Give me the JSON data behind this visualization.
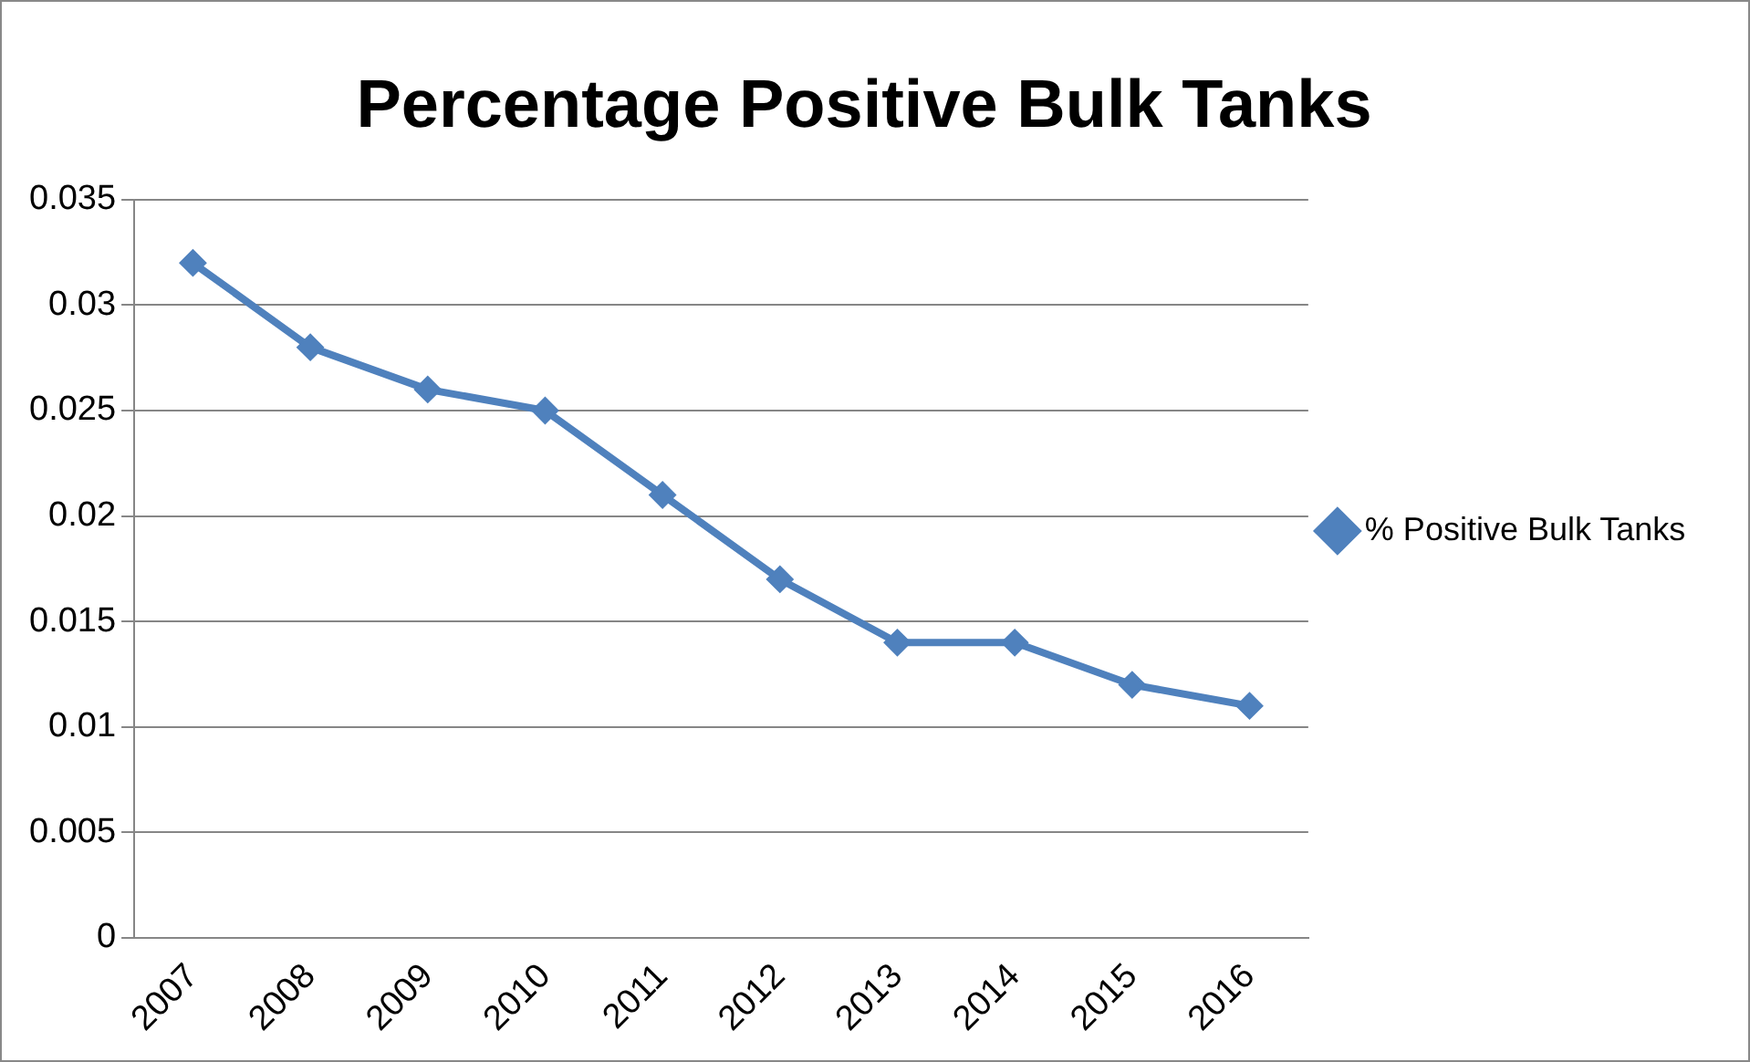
{
  "chart_data": {
    "type": "line",
    "title": "Percentage Positive Bulk Tanks",
    "categories": [
      "2007",
      "2008",
      "2009",
      "2010",
      "2011",
      "2012",
      "2013",
      "2014",
      "2015",
      "2016"
    ],
    "series": [
      {
        "name": "% Positive Bulk Tanks",
        "color": "#4f81bd",
        "values": [
          0.032,
          0.028,
          0.026,
          0.025,
          0.021,
          0.017,
          0.014,
          0.014,
          0.012,
          0.011
        ]
      }
    ],
    "ylim": [
      0,
      0.035
    ],
    "yticks": [
      0,
      0.005,
      0.01,
      0.015,
      0.02,
      0.025,
      0.03,
      0.035
    ],
    "grid": "y",
    "legend": "right",
    "marker": "diamond",
    "line_style": "solid"
  }
}
